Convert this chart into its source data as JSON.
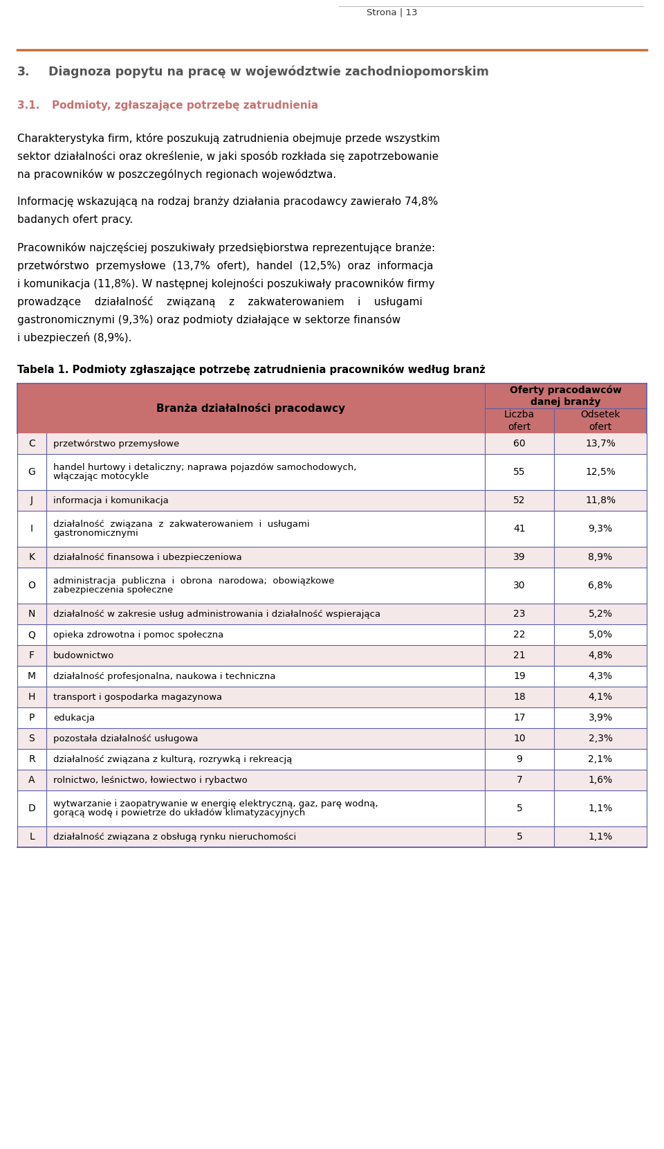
{
  "page_number": "Strona | 13",
  "header_line_color": "#C8703A",
  "section_title_num": "3.",
  "section_title_text": "Diagnoza popytu na pracę w województwie zachodniopomorskim",
  "subsection_title_num": "3.1.",
  "subsection_title_text": "Podmioty, zgłaszające potrzebę zatrudnienia",
  "para1_lines": [
    "Charakterystyka firm, które poszukują zatrudnienia obejmuje przede wszystkim",
    "sektor działalności oraz określenie, w jaki sposób rozkłada się zapotrzebowanie",
    "na pracowników w poszczególnych regionach województwa."
  ],
  "para2_lines": [
    "Informację wskazującą na rodzaj branży działania pracodawcy zawierało 74,8%",
    "badanych ofert pracy."
  ],
  "para3_lines": [
    "Pracowników najczęściej poszukiwały przedsiębiorstwa reprezentujące branże:",
    "przetwórstwo  przemysłowe  (13,7%  ofert),  handel  (12,5%)  oraz  informacja",
    "i komunikacja (11,8%). W następnej kolejności poszukiwały pracowników firmy",
    "prowadzące    działalność    związaną    z    zakwaterowaniem    i    usługami",
    "gastronomicznymi (9,3%) oraz podmioty działające w sektorze finansów",
    "i ubezpieczeń (8,9%)."
  ],
  "table_caption": "Tabela 1. Podmioty zgłaszające potrzebę zatrudnienia pracowników według branż",
  "table_header_bg": "#C87070",
  "table_row_bg_odd": "#F5E8E8",
  "table_row_bg_even": "#FFFFFF",
  "table_border_color": "#5B5EA6",
  "col_header1": "Branża działalności pracodawcy",
  "col_header2_line1": "Oferty pracodawców",
  "col_header2_line2": "danej branży",
  "col_subheader1_line1": "Liczba",
  "col_subheader1_line2": "ofert",
  "col_subheader2_line1": "Odsetek",
  "col_subheader2_line2": "ofert",
  "rows": [
    {
      "code": "C",
      "name_lines": [
        "przetwórstwo przemysłowe"
      ],
      "liczba": "60",
      "odsetek": "13,7%"
    },
    {
      "code": "G",
      "name_lines": [
        "handel hurtowy i detaliczny; naprawa pojazdów samochodowych,",
        "włączając motocykle"
      ],
      "liczba": "55",
      "odsetek": "12,5%"
    },
    {
      "code": "J",
      "name_lines": [
        "informacja i komunikacja"
      ],
      "liczba": "52",
      "odsetek": "11,8%"
    },
    {
      "code": "I",
      "name_lines": [
        "działalność  związana  z  zakwaterowaniem  i  usługami",
        "gastronomicznymi"
      ],
      "liczba": "41",
      "odsetek": "9,3%"
    },
    {
      "code": "K",
      "name_lines": [
        "działalność finansowa i ubezpieczeniowa"
      ],
      "liczba": "39",
      "odsetek": "8,9%"
    },
    {
      "code": "O",
      "name_lines": [
        "administracja  publiczna  i  obrona  narodowa;  obowiązkowe",
        "zabezpieczenia społeczne"
      ],
      "liczba": "30",
      "odsetek": "6,8%"
    },
    {
      "code": "N",
      "name_lines": [
        "działalność w zakresie usług administrowania i działalność wspierająca"
      ],
      "liczba": "23",
      "odsetek": "5,2%"
    },
    {
      "code": "Q",
      "name_lines": [
        "opieka zdrowotna i pomoc społeczna"
      ],
      "liczba": "22",
      "odsetek": "5,0%"
    },
    {
      "code": "F",
      "name_lines": [
        "budownictwo"
      ],
      "liczba": "21",
      "odsetek": "4,8%"
    },
    {
      "code": "M",
      "name_lines": [
        "działalność profesjonalna, naukowa i techniczna"
      ],
      "liczba": "19",
      "odsetek": "4,3%"
    },
    {
      "code": "H",
      "name_lines": [
        "transport i gospodarka magazynowa"
      ],
      "liczba": "18",
      "odsetek": "4,1%"
    },
    {
      "code": "P",
      "name_lines": [
        "edukacja"
      ],
      "liczba": "17",
      "odsetek": "3,9%"
    },
    {
      "code": "S",
      "name_lines": [
        "pozostała działalność usługowa"
      ],
      "liczba": "10",
      "odsetek": "2,3%"
    },
    {
      "code": "R",
      "name_lines": [
        "działalność związana z kulturą, rozrywką i rekreacją"
      ],
      "liczba": "9",
      "odsetek": "2,1%"
    },
    {
      "code": "A",
      "name_lines": [
        "rolnictwo, leśnictwo, łowiectwo i rybactwo"
      ],
      "liczba": "7",
      "odsetek": "1,6%"
    },
    {
      "code": "D",
      "name_lines": [
        "wytwarzanie i zaopatrywanie w energię elektryczną, gaz, parę wodną,",
        "gorącą wodę i powietrze do układów klimatyzacyjnych"
      ],
      "liczba": "5",
      "odsetek": "1,1%"
    },
    {
      "code": "L",
      "name_lines": [
        "działalność związana z obsługą rynku nieruchomości"
      ],
      "liczba": "5",
      "odsetek": "1,1%"
    }
  ]
}
